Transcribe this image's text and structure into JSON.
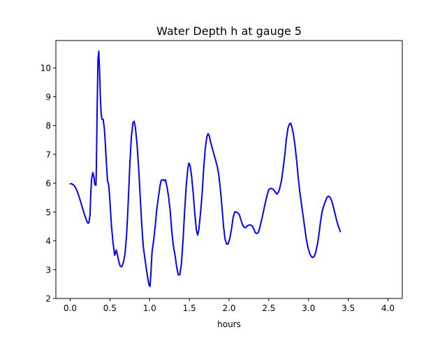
{
  "chart_data": {
    "type": "line",
    "title": "Water Depth h at gauge 5",
    "xlabel": "hours",
    "ylabel": "",
    "xlim": [
      -0.18,
      4.18
    ],
    "ylim": [
      2.0,
      10.95
    ],
    "xticks": [
      0.0,
      0.5,
      1.0,
      1.5,
      2.0,
      2.5,
      3.0,
      3.5,
      4.0
    ],
    "xtick_labels": [
      "0.0",
      "0.5",
      "1.0",
      "1.5",
      "2.0",
      "2.5",
      "3.0",
      "3.5",
      "4.0"
    ],
    "yticks": [
      2,
      3,
      4,
      5,
      6,
      7,
      8,
      9,
      10
    ],
    "ytick_labels": [
      "2",
      "3",
      "4",
      "5",
      "6",
      "7",
      "8",
      "9",
      "10"
    ],
    "grid": false,
    "legend": "none",
    "series": [
      {
        "color": "#0000ff",
        "points": [
          [
            0.0,
            5.98
          ],
          [
            0.02,
            5.98
          ],
          [
            0.05,
            5.92
          ],
          [
            0.08,
            5.78
          ],
          [
            0.11,
            5.55
          ],
          [
            0.14,
            5.28
          ],
          [
            0.17,
            5.0
          ],
          [
            0.2,
            4.75
          ],
          [
            0.22,
            4.62
          ],
          [
            0.235,
            4.62
          ],
          [
            0.25,
            4.9
          ],
          [
            0.26,
            5.7
          ],
          [
            0.27,
            6.15
          ],
          [
            0.285,
            6.37
          ],
          [
            0.3,
            6.2
          ],
          [
            0.31,
            5.95
          ],
          [
            0.325,
            5.93
          ],
          [
            0.33,
            6.6
          ],
          [
            0.34,
            8.7
          ],
          [
            0.35,
            10.3
          ],
          [
            0.36,
            10.58
          ],
          [
            0.37,
            9.9
          ],
          [
            0.38,
            9.0
          ],
          [
            0.39,
            8.4
          ],
          [
            0.4,
            8.22
          ],
          [
            0.415,
            8.22
          ],
          [
            0.43,
            7.9
          ],
          [
            0.44,
            7.5
          ],
          [
            0.45,
            7.0
          ],
          [
            0.46,
            6.5
          ],
          [
            0.47,
            6.08
          ],
          [
            0.485,
            5.95
          ],
          [
            0.5,
            5.4
          ],
          [
            0.52,
            4.5
          ],
          [
            0.54,
            3.92
          ],
          [
            0.56,
            3.5
          ],
          [
            0.58,
            3.68
          ],
          [
            0.6,
            3.45
          ],
          [
            0.615,
            3.25
          ],
          [
            0.63,
            3.12
          ],
          [
            0.65,
            3.1
          ],
          [
            0.67,
            3.25
          ],
          [
            0.69,
            3.55
          ],
          [
            0.71,
            4.2
          ],
          [
            0.73,
            5.3
          ],
          [
            0.75,
            6.6
          ],
          [
            0.77,
            7.6
          ],
          [
            0.79,
            8.1
          ],
          [
            0.805,
            8.15
          ],
          [
            0.82,
            7.95
          ],
          [
            0.84,
            7.4
          ],
          [
            0.86,
            6.6
          ],
          [
            0.88,
            5.6
          ],
          [
            0.9,
            4.6
          ],
          [
            0.92,
            3.8
          ],
          [
            0.94,
            3.4
          ],
          [
            0.96,
            3.0
          ],
          [
            0.98,
            2.65
          ],
          [
            0.995,
            2.45
          ],
          [
            1.005,
            2.42
          ],
          [
            1.015,
            2.8
          ],
          [
            1.03,
            3.6
          ],
          [
            1.05,
            4.0
          ],
          [
            1.07,
            4.5
          ],
          [
            1.09,
            5.1
          ],
          [
            1.11,
            5.5
          ],
          [
            1.13,
            5.9
          ],
          [
            1.145,
            6.1
          ],
          [
            1.17,
            6.12
          ],
          [
            1.19,
            6.08
          ],
          [
            1.2,
            6.12
          ],
          [
            1.22,
            5.85
          ],
          [
            1.24,
            5.5
          ],
          [
            1.26,
            5.0
          ],
          [
            1.28,
            4.3
          ],
          [
            1.3,
            3.8
          ],
          [
            1.32,
            3.5
          ],
          [
            1.34,
            3.1
          ],
          [
            1.36,
            2.82
          ],
          [
            1.38,
            2.82
          ],
          [
            1.4,
            3.2
          ],
          [
            1.42,
            4.0
          ],
          [
            1.44,
            5.0
          ],
          [
            1.46,
            5.9
          ],
          [
            1.48,
            6.5
          ],
          [
            1.495,
            6.7
          ],
          [
            1.51,
            6.6
          ],
          [
            1.53,
            6.2
          ],
          [
            1.55,
            5.6
          ],
          [
            1.57,
            4.9
          ],
          [
            1.59,
            4.35
          ],
          [
            1.605,
            4.2
          ],
          [
            1.62,
            4.4
          ],
          [
            1.64,
            4.95
          ],
          [
            1.66,
            5.6
          ],
          [
            1.68,
            6.5
          ],
          [
            1.7,
            7.2
          ],
          [
            1.72,
            7.6
          ],
          [
            1.735,
            7.72
          ],
          [
            1.75,
            7.65
          ],
          [
            1.77,
            7.4
          ],
          [
            1.79,
            7.2
          ],
          [
            1.81,
            7.0
          ],
          [
            1.83,
            6.8
          ],
          [
            1.85,
            6.6
          ],
          [
            1.87,
            6.3
          ],
          [
            1.89,
            5.8
          ],
          [
            1.91,
            5.2
          ],
          [
            1.93,
            4.5
          ],
          [
            1.95,
            4.05
          ],
          [
            1.97,
            3.88
          ],
          [
            1.99,
            3.9
          ],
          [
            2.01,
            4.1
          ],
          [
            2.03,
            4.4
          ],
          [
            2.05,
            4.8
          ],
          [
            2.07,
            5.0
          ],
          [
            2.09,
            5.0
          ],
          [
            2.11,
            4.97
          ],
          [
            2.13,
            4.9
          ],
          [
            2.15,
            4.72
          ],
          [
            2.17,
            4.55
          ],
          [
            2.19,
            4.47
          ],
          [
            2.21,
            4.46
          ],
          [
            2.23,
            4.52
          ],
          [
            2.25,
            4.55
          ],
          [
            2.27,
            4.55
          ],
          [
            2.29,
            4.52
          ],
          [
            2.31,
            4.42
          ],
          [
            2.33,
            4.28
          ],
          [
            2.35,
            4.25
          ],
          [
            2.37,
            4.3
          ],
          [
            2.39,
            4.5
          ],
          [
            2.42,
            4.85
          ],
          [
            2.45,
            5.25
          ],
          [
            2.48,
            5.6
          ],
          [
            2.5,
            5.78
          ],
          [
            2.52,
            5.82
          ],
          [
            2.55,
            5.8
          ],
          [
            2.58,
            5.7
          ],
          [
            2.6,
            5.62
          ],
          [
            2.62,
            5.68
          ],
          [
            2.64,
            5.85
          ],
          [
            2.66,
            6.1
          ],
          [
            2.68,
            6.5
          ],
          [
            2.7,
            6.95
          ],
          [
            2.72,
            7.5
          ],
          [
            2.74,
            7.9
          ],
          [
            2.76,
            8.06
          ],
          [
            2.775,
            8.08
          ],
          [
            2.79,
            7.95
          ],
          [
            2.81,
            7.7
          ],
          [
            2.83,
            7.3
          ],
          [
            2.85,
            6.8
          ],
          [
            2.87,
            6.2
          ],
          [
            2.89,
            5.7
          ],
          [
            2.91,
            5.3
          ],
          [
            2.93,
            4.9
          ],
          [
            2.95,
            4.5
          ],
          [
            2.97,
            4.1
          ],
          [
            2.99,
            3.8
          ],
          [
            3.01,
            3.6
          ],
          [
            3.03,
            3.47
          ],
          [
            3.05,
            3.42
          ],
          [
            3.07,
            3.45
          ],
          [
            3.09,
            3.6
          ],
          [
            3.11,
            3.85
          ],
          [
            3.13,
            4.2
          ],
          [
            3.15,
            4.65
          ],
          [
            3.17,
            5.0
          ],
          [
            3.19,
            5.2
          ],
          [
            3.21,
            5.35
          ],
          [
            3.23,
            5.5
          ],
          [
            3.25,
            5.55
          ],
          [
            3.27,
            5.52
          ],
          [
            3.29,
            5.4
          ],
          [
            3.31,
            5.2
          ],
          [
            3.33,
            4.98
          ],
          [
            3.35,
            4.75
          ],
          [
            3.37,
            4.55
          ],
          [
            3.39,
            4.4
          ],
          [
            3.4,
            4.32
          ]
        ]
      }
    ]
  }
}
